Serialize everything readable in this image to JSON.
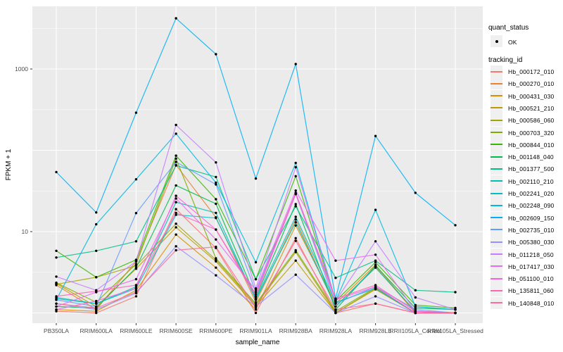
{
  "chart_data": {
    "type": "line",
    "title": "",
    "xlabel": "sample_name",
    "ylabel": "FPKM + 1",
    "y_scale": "log10",
    "y_axis": {
      "ylim": [
        0.9,
        5900
      ],
      "major_ticks": [
        {
          "value": 10,
          "label": "10"
        },
        {
          "value": 1000,
          "label": "1000"
        }
      ],
      "major_gridlines": [
        1,
        10,
        100,
        1000
      ],
      "minor_gridlines": [
        3.16,
        31.6,
        316,
        3160
      ],
      "grid": "on",
      "legend_position": "right"
    },
    "categories": [
      "PB350LA",
      "RRIM600LA",
      "RRIM600LE",
      "RRIM600SE",
      "RRIM600PE",
      "RRIM901LA",
      "RRIM928BA",
      "RRIM928LA",
      "RRIM928LE",
      "RRII105LA_Control",
      "RRII105LA_Stressed"
    ],
    "series": [
      {
        "name": "Hb_000172_010",
        "color": "#F8766D",
        "values": [
          1.05,
          1.0,
          1.6,
          18.9,
          6.3,
          1.0,
          8.3,
          1.0,
          1.3,
          1.0,
          1.0
        ]
      },
      {
        "name": "Hb_000270_010",
        "color": "#EA8331",
        "values": [
          2.2,
          1.1,
          4.3,
          66,
          15,
          1.35,
          14.1,
          1.2,
          3.7,
          1.0,
          1.0
        ]
      },
      {
        "name": "Hb_000431_030",
        "color": "#D89000",
        "values": [
          1.1,
          1.05,
          1.9,
          9.2,
          3.6,
          1.1,
          11.9,
          1.3,
          3.9,
          1.0,
          1.0
        ]
      },
      {
        "name": "Hb_000521_210",
        "color": "#C09B00",
        "values": [
          2.3,
          1.2,
          3.5,
          11.3,
          4.3,
          1.2,
          4.4,
          1.0,
          1.95,
          1.0,
          1.0
        ]
      },
      {
        "name": "Hb_000586_060",
        "color": "#A3A500",
        "values": [
          2.25,
          2.75,
          3.8,
          12.5,
          4.5,
          1.25,
          5.6,
          1.0,
          2.0,
          1.0,
          1.0
        ]
      },
      {
        "name": "Hb_000703_320",
        "color": "#7CAE00",
        "values": [
          2.35,
          1.35,
          4.0,
          79,
          4.7,
          1.3,
          5.9,
          1.05,
          2.05,
          1.0,
          1.0
        ]
      },
      {
        "name": "Hb_000844_010",
        "color": "#39B600",
        "values": [
          5.8,
          2.75,
          4.5,
          86,
          25,
          2.6,
          48,
          1.4,
          4.2,
          1.25,
          1.15
        ]
      },
      {
        "name": "Hb_001148_040",
        "color": "#00BB4E",
        "values": [
          1.2,
          1.15,
          3.6,
          37,
          22,
          1.55,
          21.8,
          1.1,
          3.8,
          1.15,
          1.1
        ]
      },
      {
        "name": "Hb_001377_500",
        "color": "#00C087",
        "values": [
          4.8,
          5.8,
          7.6,
          65,
          47,
          2.6,
          20.5,
          2.7,
          4.4,
          1.9,
          1.8
        ]
      },
      {
        "name": "Hb_002110_210",
        "color": "#00C0B2",
        "values": [
          1.5,
          1.3,
          2.1,
          23,
          17,
          1.45,
          13,
          1.2,
          3.6,
          1.05,
          1.0
        ]
      },
      {
        "name": "Hb_002241_020",
        "color": "#00BFC4",
        "values": [
          1.55,
          1.3,
          2.0,
          16.1,
          14.7,
          1.5,
          15.2,
          1.35,
          2.0,
          1.0,
          1.0
        ]
      },
      {
        "name": "Hb_002248_090",
        "color": "#00BAE0",
        "values": [
          1.45,
          12.3,
          44,
          160,
          40,
          4.2,
          70,
          1.4,
          18.5,
          1.2,
          1.1
        ]
      },
      {
        "name": "Hb_002609_150",
        "color": "#00B0F6",
        "values": [
          54,
          17.2,
          290,
          4200,
          1520,
          45,
          1150,
          1.5,
          150,
          30,
          12
        ]
      },
      {
        "name": "Hb_002735_010",
        "color": "#619CFF",
        "values": [
          1.45,
          1.2,
          16.9,
          72,
          38,
          1.8,
          29,
          1.3,
          2.1,
          1.1,
          1.0
        ]
      },
      {
        "name": "Hb_005380_030",
        "color": "#9590FF",
        "values": [
          1.3,
          1.1,
          1.75,
          6.6,
          2.9,
          1.2,
          2.95,
          1.0,
          1.6,
          1.0,
          1.0
        ]
      },
      {
        "name": "Hb_011218_050",
        "color": "#C77CFF",
        "values": [
          2.8,
          1.9,
          4.3,
          205,
          71,
          2.0,
          62,
          1.4,
          7.6,
          1.55,
          1.1
        ]
      },
      {
        "name": "Hb_017417_030",
        "color": "#E76BF3",
        "values": [
          1.2,
          1.8,
          2.6,
          25.5,
          8.0,
          1.9,
          32,
          4.4,
          5.2,
          1.05,
          1.0
        ]
      },
      {
        "name": "Hb_051100_010",
        "color": "#F763E0",
        "values": [
          1.1,
          1.4,
          2.0,
          27.6,
          10.6,
          1.6,
          29,
          1.45,
          2.1,
          1.0,
          1.0
        ]
      },
      {
        "name": "Hb_135811_060",
        "color": "#FF62BC",
        "values": [
          1.6,
          1.85,
          2.2,
          17,
          10.6,
          1.7,
          30,
          1.5,
          2.2,
          1.05,
          1.0
        ]
      },
      {
        "name": "Hb_140848_010",
        "color": "#FF6A98",
        "values": [
          1.3,
          1.15,
          1.8,
          5.9,
          6.5,
          1.15,
          7.7,
          1.1,
          1.3,
          1.0,
          1.0
        ]
      }
    ],
    "legend": {
      "quant_status_title": "quant_status",
      "quant_status_items": [
        {
          "label": "OK",
          "marker": "point"
        }
      ],
      "tracking_title": "tracking_id"
    }
  },
  "colors": {
    "panel_bg": "#EBEBEB",
    "gridline_major": "#FFFFFF",
    "gridline_minor": "#F7F7F7",
    "marker": "#000000",
    "tick_label": "#4D4D4D",
    "axis_title": "#000000",
    "tick_mark": "#333333",
    "legend_key_bg": "#F0F0F0"
  }
}
